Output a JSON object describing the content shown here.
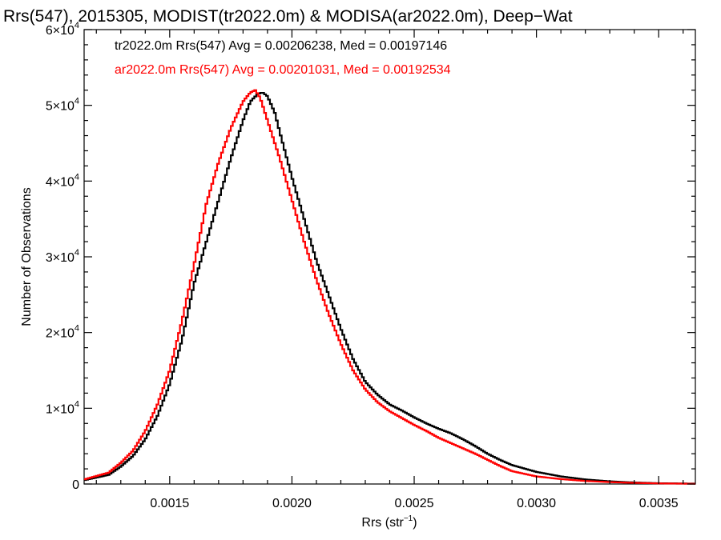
{
  "chart_data": {
    "type": "line",
    "title": "Rrs(547), 2015305, MODIST(tr2022.0m) & MODISA(ar2022.0m), Deep−Wat",
    "xlabel": "Rrs (str",
    "xlabel_sup": "−1",
    "xlabel_close": ")",
    "ylabel": "Number of Observations",
    "xlim": [
      0.00115,
      0.00365
    ],
    "ylim": [
      0,
      60000
    ],
    "xticks": [
      {
        "value": 0.0015,
        "label": "0.0015"
      },
      {
        "value": 0.002,
        "label": "0.0020"
      },
      {
        "value": 0.0025,
        "label": "0.0025"
      },
      {
        "value": 0.003,
        "label": "0.0030"
      },
      {
        "value": 0.0035,
        "label": "0.0035"
      }
    ],
    "yticks": [
      {
        "value": 0,
        "mant": "0",
        "exp": ""
      },
      {
        "value": 10000,
        "mant": "1×10",
        "exp": "4"
      },
      {
        "value": 20000,
        "mant": "2×10",
        "exp": "4"
      },
      {
        "value": 30000,
        "mant": "3×10",
        "exp": "4"
      },
      {
        "value": 40000,
        "mant": "4×10",
        "exp": "4"
      },
      {
        "value": 50000,
        "mant": "5×10",
        "exp": "4"
      },
      {
        "value": 60000,
        "mant": "6×10",
        "exp": "4"
      }
    ],
    "grid": false,
    "legend_position": "top-left",
    "series": [
      {
        "name": "tr2022.0m Rrs(547) Avg = 0.00206238, Med = 0.00197146",
        "color": "#000000",
        "points": [
          [
            0.00115,
            500
          ],
          [
            0.00125,
            1200
          ],
          [
            0.0013,
            2300
          ],
          [
            0.00135,
            3700
          ],
          [
            0.0014,
            5900
          ],
          [
            0.00145,
            9000
          ],
          [
            0.0015,
            13200
          ],
          [
            0.00155,
            19000
          ],
          [
            0.0016,
            26500
          ],
          [
            0.00165,
            32000
          ],
          [
            0.0017,
            37500
          ],
          [
            0.00175,
            43000
          ],
          [
            0.0018,
            48000
          ],
          [
            0.00183,
            50500
          ],
          [
            0.00186,
            51500
          ],
          [
            0.00188,
            51700
          ],
          [
            0.0019,
            51200
          ],
          [
            0.00193,
            49000
          ],
          [
            0.00195,
            46500
          ],
          [
            0.002,
            40500
          ],
          [
            0.00205,
            35000
          ],
          [
            0.0021,
            29500
          ],
          [
            0.00215,
            25000
          ],
          [
            0.0022,
            20500
          ],
          [
            0.00225,
            16500
          ],
          [
            0.0023,
            13500
          ],
          [
            0.00235,
            11800
          ],
          [
            0.0024,
            10500
          ],
          [
            0.00245,
            9700
          ],
          [
            0.0025,
            8800
          ],
          [
            0.00255,
            8000
          ],
          [
            0.0026,
            7300
          ],
          [
            0.00265,
            6700
          ],
          [
            0.0027,
            5900
          ],
          [
            0.00275,
            5000
          ],
          [
            0.0028,
            4000
          ],
          [
            0.00285,
            3200
          ],
          [
            0.0029,
            2500
          ],
          [
            0.003,
            1600
          ],
          [
            0.0031,
            1000
          ],
          [
            0.0032,
            600
          ],
          [
            0.0033,
            350
          ],
          [
            0.0034,
            200
          ],
          [
            0.0035,
            100
          ],
          [
            0.00365,
            50
          ]
        ]
      },
      {
        "name": "ar2022.0m Rrs(547) Avg = 0.00201031, Med = 0.00192534",
        "color": "#ff0000",
        "points": [
          [
            0.00115,
            600
          ],
          [
            0.00125,
            1500
          ],
          [
            0.0013,
            2800
          ],
          [
            0.00135,
            4400
          ],
          [
            0.0014,
            7000
          ],
          [
            0.00145,
            10500
          ],
          [
            0.0015,
            15000
          ],
          [
            0.00155,
            21500
          ],
          [
            0.0016,
            29000
          ],
          [
            0.00165,
            37000
          ],
          [
            0.0017,
            42500
          ],
          [
            0.00175,
            47000
          ],
          [
            0.0018,
            50500
          ],
          [
            0.00183,
            51700
          ],
          [
            0.00185,
            52000
          ],
          [
            0.00187,
            51000
          ],
          [
            0.0019,
            48000
          ],
          [
            0.00195,
            43000
          ],
          [
            0.002,
            37500
          ],
          [
            0.00205,
            32000
          ],
          [
            0.0021,
            27000
          ],
          [
            0.00215,
            22500
          ],
          [
            0.0022,
            18500
          ],
          [
            0.00225,
            15000
          ],
          [
            0.0023,
            12500
          ],
          [
            0.00235,
            10800
          ],
          [
            0.0024,
            9600
          ],
          [
            0.00245,
            8700
          ],
          [
            0.0025,
            7800
          ],
          [
            0.00255,
            7000
          ],
          [
            0.0026,
            6100
          ],
          [
            0.00265,
            5400
          ],
          [
            0.0027,
            4700
          ],
          [
            0.00275,
            4000
          ],
          [
            0.0028,
            3200
          ],
          [
            0.00285,
            2400
          ],
          [
            0.0029,
            1700
          ],
          [
            0.003,
            1000
          ],
          [
            0.0031,
            650
          ],
          [
            0.0032,
            400
          ],
          [
            0.0033,
            250
          ],
          [
            0.0034,
            150
          ],
          [
            0.0035,
            80
          ],
          [
            0.00365,
            30
          ]
        ]
      }
    ]
  }
}
